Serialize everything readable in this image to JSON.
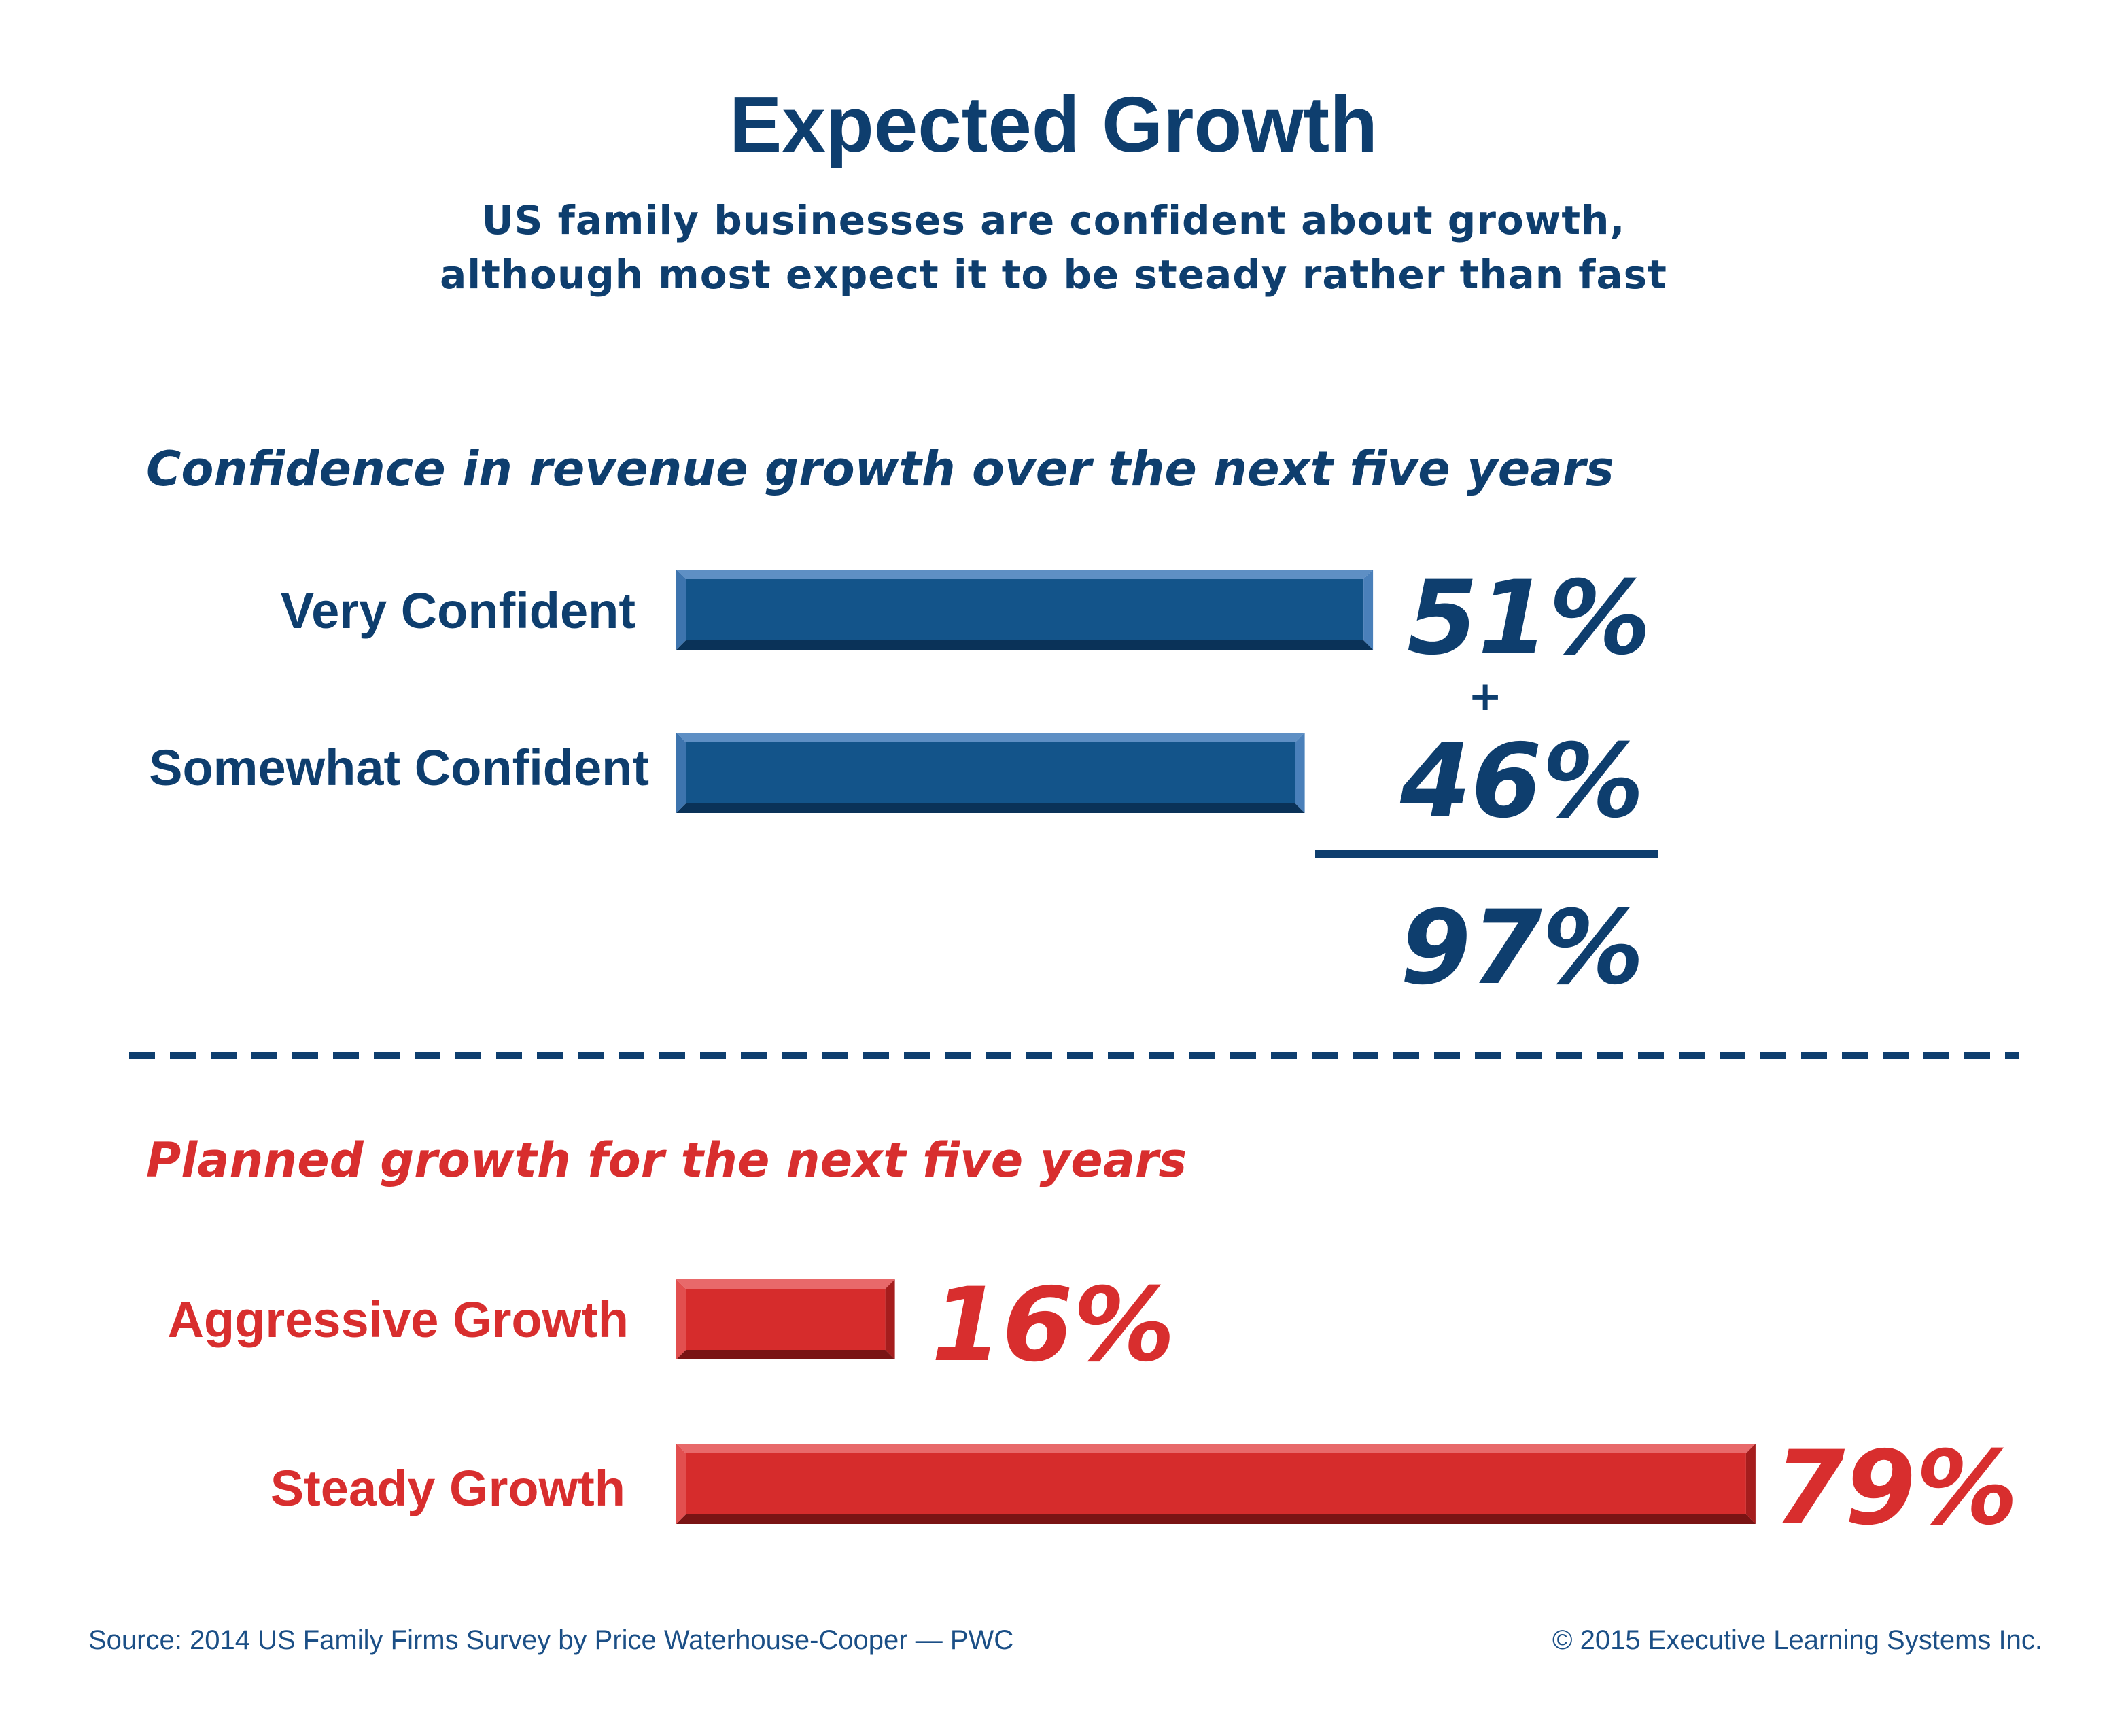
{
  "title": "Expected Growth",
  "subtitle": [
    "US family businesses are confident about growth,",
    "although most expect it to be steady rather than fast"
  ],
  "colors": {
    "navy": "#0e3e6e",
    "blue_bar": "#13548a",
    "red": "#d82e2e",
    "red_bar": "#d62c2c"
  },
  "chart_data": [
    {
      "type": "bar",
      "orientation": "horizontal",
      "title": "Confidence in revenue growth over the next five years",
      "categories": [
        "Very Confident",
        "Somewhat Confident"
      ],
      "values": [
        51,
        46
      ],
      "value_labels": [
        "51%",
        "46%"
      ],
      "unit": "%",
      "plus_sign": "+",
      "total": 97,
      "total_label": "97%",
      "grid": false,
      "legend": "none"
    },
    {
      "type": "bar",
      "orientation": "horizontal",
      "title": "Planned growth for the next five years",
      "categories": [
        "Aggressive Growth",
        "Steady Growth"
      ],
      "values": [
        16,
        79
      ],
      "value_labels": [
        "16%",
        "79%"
      ],
      "unit": "%",
      "grid": false,
      "legend": "none"
    }
  ],
  "footer": {
    "source": "Source: 2014 US Family Firms Survey by Price Waterhouse-Cooper — PWC",
    "copyright": "© 2015 Executive Learning Systems Inc."
  }
}
